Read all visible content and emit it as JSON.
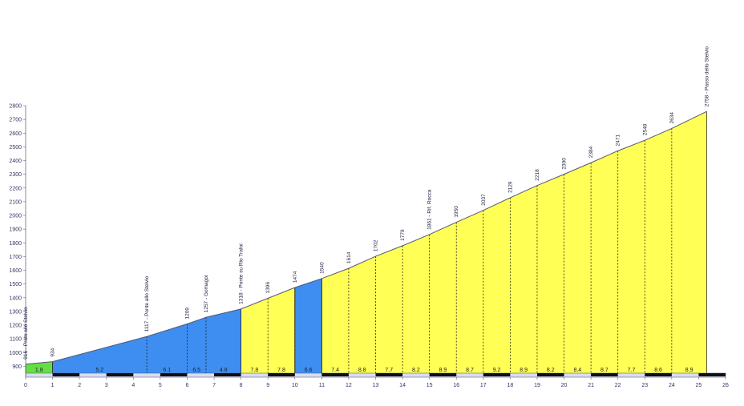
{
  "chart_data": {
    "type": "area",
    "title": "",
    "xlabel": "",
    "ylabel": "",
    "xlim": [
      0,
      26
    ],
    "ylim": [
      850,
      2800
    ],
    "x_ticks": [
      "0",
      "1",
      "2",
      "3",
      "4",
      "5",
      "6",
      "7",
      "8",
      "9",
      "10",
      "11",
      "12",
      "13",
      "14",
      "15",
      "16",
      "17",
      "18",
      "19",
      "20",
      "21",
      "22",
      "23",
      "24",
      "25",
      "26"
    ],
    "y_ticks": [
      "900",
      "1000",
      "1100",
      "1200",
      "1300",
      "1400",
      "1500",
      "1600",
      "1700",
      "1800",
      "1900",
      "2000",
      "2100",
      "2200",
      "2300",
      "2400",
      "2500",
      "2600",
      "2700",
      "2800"
    ],
    "profile": [
      {
        "x": 0,
        "y": 916
      },
      {
        "x": 1,
        "y": 934
      },
      {
        "x": 4.5,
        "y": 1117
      },
      {
        "x": 6,
        "y": 1209
      },
      {
        "x": 6.7,
        "y": 1257
      },
      {
        "x": 8,
        "y": 1318
      },
      {
        "x": 9,
        "y": 1396
      },
      {
        "x": 10,
        "y": 1474
      },
      {
        "x": 11,
        "y": 1540
      },
      {
        "x": 12,
        "y": 1614
      },
      {
        "x": 13,
        "y": 1702
      },
      {
        "x": 14,
        "y": 1779
      },
      {
        "x": 15,
        "y": 1861
      },
      {
        "x": 16,
        "y": 1950
      },
      {
        "x": 17,
        "y": 2037
      },
      {
        "x": 18,
        "y": 2129
      },
      {
        "x": 19,
        "y": 2218
      },
      {
        "x": 20,
        "y": 2300
      },
      {
        "x": 21,
        "y": 2384
      },
      {
        "x": 22,
        "y": 2471
      },
      {
        "x": 23,
        "y": 2548
      },
      {
        "x": 24,
        "y": 2634
      },
      {
        "x": 25.3,
        "y": 2758
      }
    ],
    "segments": [
      {
        "x0": 0,
        "x1": 1,
        "color": "#66dd44"
      },
      {
        "x0": 1,
        "x1": 8,
        "color": "#3d8ef0"
      },
      {
        "x0": 8,
        "x1": 10,
        "color": "#ffff55"
      },
      {
        "x0": 10,
        "x1": 11,
        "color": "#3d8ef0"
      },
      {
        "x0": 11,
        "x1": 25.3,
        "color": "#ffff55"
      }
    ],
    "annotations": [
      {
        "x": 0,
        "label": "916 - Prato allo Stelvio"
      },
      {
        "x": 1,
        "label": "934"
      },
      {
        "x": 4.5,
        "label": "1117 - Ponte allo Stelvio"
      },
      {
        "x": 6,
        "label": "1209"
      },
      {
        "x": 6.7,
        "label": "1257 - Gomagoi"
      },
      {
        "x": 8,
        "label": "1318 - Ponte su Rio Trafoi"
      },
      {
        "x": 9,
        "label": "1396"
      },
      {
        "x": 10,
        "label": "1474"
      },
      {
        "x": 11,
        "label": "1540"
      },
      {
        "x": 12,
        "label": "1614"
      },
      {
        "x": 13,
        "label": "1702"
      },
      {
        "x": 14,
        "label": "1779"
      },
      {
        "x": 15,
        "label": "1861 - Rif. Rocca"
      },
      {
        "x": 16,
        "label": "1950"
      },
      {
        "x": 17,
        "label": "2037"
      },
      {
        "x": 18,
        "label": "2129"
      },
      {
        "x": 19,
        "label": "2218"
      },
      {
        "x": 20,
        "label": "2300"
      },
      {
        "x": 21,
        "label": "2384"
      },
      {
        "x": 22,
        "label": "2471"
      },
      {
        "x": 23,
        "label": "2548"
      },
      {
        "x": 24,
        "label": "2634"
      },
      {
        "x": 25.3,
        "label": "2758 - Passo dello Stelvio"
      }
    ],
    "gradients": [
      {
        "x": 0.5,
        "label": "1.8"
      },
      {
        "x": 2.75,
        "label": "5.2"
      },
      {
        "x": 5.25,
        "label": "6.1"
      },
      {
        "x": 6.35,
        "label": "6.5"
      },
      {
        "x": 7.35,
        "label": "4.8"
      },
      {
        "x": 8.5,
        "label": "7.8"
      },
      {
        "x": 9.5,
        "label": "7.8"
      },
      {
        "x": 10.5,
        "label": "6.6"
      },
      {
        "x": 11.5,
        "label": "7.4"
      },
      {
        "x": 12.5,
        "label": "8.8"
      },
      {
        "x": 13.5,
        "label": "7.7"
      },
      {
        "x": 14.5,
        "label": "8.2"
      },
      {
        "x": 15.5,
        "label": "8.9"
      },
      {
        "x": 16.5,
        "label": "8.7"
      },
      {
        "x": 17.5,
        "label": "9.2"
      },
      {
        "x": 18.5,
        "label": "8.9"
      },
      {
        "x": 19.5,
        "label": "8.2"
      },
      {
        "x": 20.5,
        "label": "8.4"
      },
      {
        "x": 21.5,
        "label": "8.7"
      },
      {
        "x": 22.5,
        "label": "7.7"
      },
      {
        "x": 23.5,
        "label": "8.6"
      },
      {
        "x": 24.65,
        "label": "8.9"
      }
    ],
    "grid": false,
    "legend": "none"
  }
}
